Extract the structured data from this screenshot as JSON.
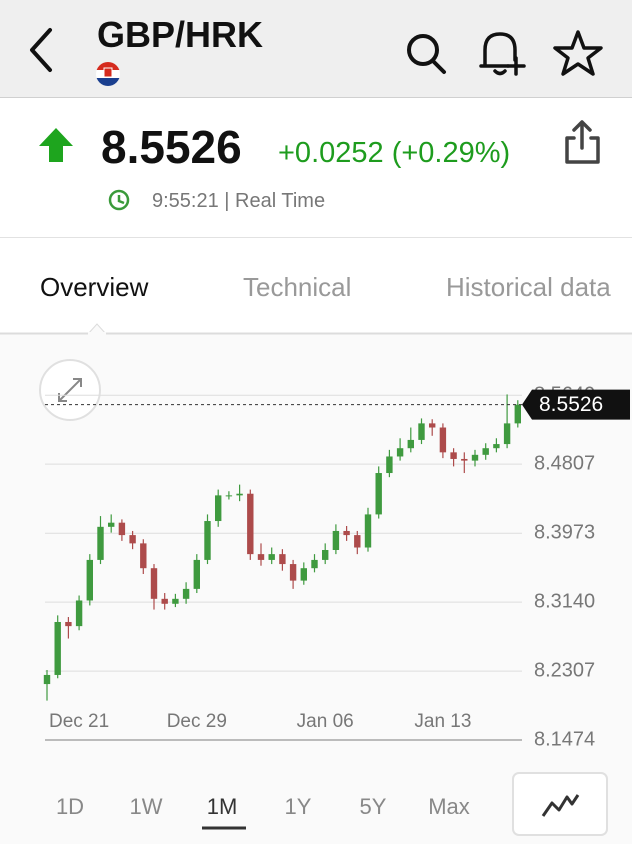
{
  "header": {
    "title": "GBP/HRK"
  },
  "quote": {
    "price": "8.5526",
    "change": "+0.0252 (+0.29%)",
    "time": "9:55:21 | Real Time"
  },
  "tabs": [
    "Overview",
    "Technical",
    "Historical data"
  ],
  "ranges": [
    "1D",
    "1W",
    "1M",
    "1Y",
    "5Y",
    "Max"
  ],
  "chart_data": {
    "type": "candlestick",
    "categories": [
      null,
      null,
      null,
      "Dec 21",
      null,
      null,
      null,
      null,
      null,
      null,
      null,
      null,
      null,
      null,
      "Dec 29",
      null,
      null,
      null,
      null,
      null,
      null,
      null,
      null,
      null,
      null,
      null,
      "Jan 06",
      null,
      null,
      null,
      null,
      null,
      null,
      null,
      null,
      null,
      null,
      "Jan 13",
      null,
      null,
      null,
      null,
      null,
      null,
      null
    ],
    "open": [
      8.215,
      8.226,
      8.29,
      8.285,
      8.316,
      8.365,
      8.405,
      8.41,
      8.395,
      8.385,
      8.355,
      8.318,
      8.312,
      8.318,
      8.33,
      8.365,
      8.412,
      8.443,
      8.443,
      8.445,
      8.372,
      8.365,
      8.372,
      8.36,
      8.34,
      8.355,
      8.365,
      8.377,
      8.4,
      8.395,
      8.38,
      8.42,
      8.47,
      8.49,
      8.5,
      8.51,
      8.53,
      8.525,
      8.495,
      8.487,
      8.485,
      8.492,
      8.5,
      8.505,
      8.53
    ],
    "high": [
      8.232,
      8.298,
      8.296,
      8.322,
      8.372,
      8.418,
      8.42,
      8.414,
      8.4,
      8.39,
      8.36,
      8.325,
      8.324,
      8.338,
      8.372,
      8.42,
      8.45,
      8.448,
      8.456,
      8.45,
      8.385,
      8.38,
      8.378,
      8.365,
      8.362,
      8.372,
      8.385,
      8.408,
      8.406,
      8.4,
      8.428,
      8.478,
      8.498,
      8.512,
      8.525,
      8.536,
      8.535,
      8.53,
      8.5,
      8.495,
      8.498,
      8.506,
      8.512,
      8.565,
      8.558
    ],
    "low": [
      8.195,
      8.222,
      8.27,
      8.28,
      8.31,
      8.36,
      8.398,
      8.388,
      8.378,
      8.348,
      8.305,
      8.305,
      8.308,
      8.312,
      8.325,
      8.36,
      8.405,
      8.438,
      8.436,
      8.365,
      8.358,
      8.36,
      8.352,
      8.33,
      8.335,
      8.35,
      8.36,
      8.372,
      8.388,
      8.372,
      8.375,
      8.415,
      8.465,
      8.485,
      8.495,
      8.505,
      8.515,
      8.488,
      8.478,
      8.47,
      8.478,
      8.486,
      8.495,
      8.5,
      8.525
    ],
    "close": [
      8.226,
      8.29,
      8.285,
      8.316,
      8.365,
      8.405,
      8.41,
      8.395,
      8.385,
      8.355,
      8.318,
      8.312,
      8.318,
      8.33,
      8.365,
      8.412,
      8.443,
      8.443,
      8.445,
      8.372,
      8.365,
      8.372,
      8.36,
      8.34,
      8.355,
      8.365,
      8.377,
      8.4,
      8.395,
      8.38,
      8.42,
      8.47,
      8.49,
      8.5,
      8.51,
      8.53,
      8.525,
      8.495,
      8.487,
      8.485,
      8.492,
      8.5,
      8.505,
      8.53,
      8.5526
    ],
    "up_color": "#3f9a3f",
    "down_color": "#ad4b4b",
    "ylim": [
      8.1474,
      8.58
    ],
    "yticks": [
      8.1474,
      8.2307,
      {
        "value": 8.314,
        "label": "8.3140"
      },
      8.3973,
      8.4807,
      {
        "value": 8.564,
        "label": "8.5640"
      }
    ],
    "grid": true
  }
}
